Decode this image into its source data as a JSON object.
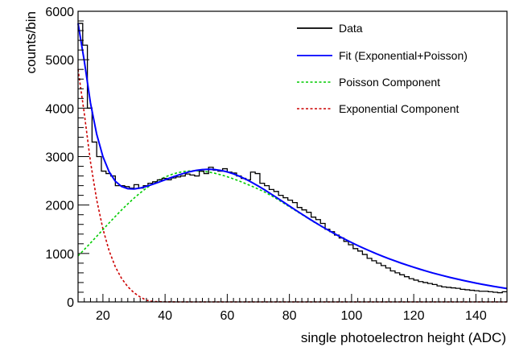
{
  "chart_data": {
    "type": "line",
    "xlabel": "single photoelectron height (ADC)",
    "ylabel": "counts/bin",
    "xlim": [
      12,
      150
    ],
    "ylim": [
      0,
      6000
    ],
    "x_ticks": [
      20,
      40,
      60,
      80,
      100,
      120,
      140
    ],
    "y_ticks": [
      0,
      1000,
      2000,
      3000,
      4000,
      5000,
      6000
    ],
    "x_tick_labels": [
      "20",
      "40",
      "60",
      "80",
      "100",
      "120",
      "140"
    ],
    "y_tick_labels": [
      "0",
      "1000",
      "2000",
      "3000",
      "4000",
      "5000",
      "6000"
    ],
    "grid": false,
    "legend_position": "top-right",
    "legend": [
      {
        "label": "Data",
        "color": "#000000",
        "style": "solid"
      },
      {
        "label": "Fit (Exponential+Poisson)",
        "color": "#0000ff",
        "style": "solid"
      },
      {
        "label": "Poisson Component",
        "color": "#00cc00",
        "style": "dashed"
      },
      {
        "label": "Exponential Component",
        "color": "#cc0000",
        "style": "dashed"
      }
    ],
    "series": [
      {
        "name": "Data",
        "type": "step",
        "bin_width": 1.5,
        "x": [
          12.75,
          14.25,
          15.75,
          17.25,
          18.75,
          20.25,
          21.75,
          23.25,
          24.75,
          26.25,
          27.75,
          29.25,
          30.75,
          32.25,
          33.75,
          35.25,
          36.75,
          38.25,
          39.75,
          41.25,
          42.75,
          44.25,
          45.75,
          47.25,
          48.75,
          50.25,
          51.75,
          53.25,
          54.75,
          56.25,
          57.75,
          59.25,
          60.75,
          62.25,
          63.75,
          65.25,
          66.75,
          68.25,
          69.75,
          71.25,
          72.75,
          74.25,
          75.75,
          77.25,
          78.75,
          80.25,
          81.75,
          83.25,
          84.75,
          86.25,
          87.75,
          89.25,
          90.75,
          92.25,
          93.75,
          95.25,
          96.75,
          98.25,
          99.75,
          101.25,
          102.75,
          104.25,
          105.75,
          107.25,
          108.75,
          110.25,
          111.75,
          113.25,
          114.75,
          116.25,
          117.75,
          119.25,
          120.75,
          122.25,
          123.75,
          125.25,
          126.75,
          128.25,
          129.75,
          131.25,
          132.75,
          134.25,
          135.75,
          137.25,
          138.75,
          140.25,
          141.75,
          143.25,
          144.75,
          146.25,
          147.75,
          149.25
        ],
        "y": [
          5750,
          5300,
          4000,
          3300,
          3000,
          2700,
          2650,
          2600,
          2400,
          2400,
          2380,
          2350,
          2420,
          2350,
          2400,
          2450,
          2480,
          2520,
          2550,
          2520,
          2560,
          2580,
          2600,
          2640,
          2620,
          2600,
          2700,
          2650,
          2780,
          2720,
          2700,
          2750,
          2680,
          2660,
          2600,
          2550,
          2520,
          2680,
          2650,
          2450,
          2400,
          2320,
          2280,
          2200,
          2150,
          2100,
          2050,
          1950,
          1900,
          1850,
          1750,
          1700,
          1620,
          1500,
          1450,
          1380,
          1320,
          1250,
          1180,
          1100,
          1050,
          980,
          900,
          850,
          800,
          750,
          700,
          640,
          600,
          560,
          520,
          480,
          450,
          420,
          400,
          380,
          360,
          330,
          310,
          300,
          290,
          280,
          260,
          250,
          240,
          230,
          220,
          220,
          210,
          200,
          190,
          210
        ]
      },
      {
        "name": "Fit (Exponential+Poisson)",
        "type": "line",
        "x": [
          12,
          14,
          16,
          18,
          20,
          22,
          24,
          26,
          28,
          30,
          32,
          34,
          36,
          38,
          40,
          42,
          44,
          46,
          48,
          50,
          52,
          54,
          56,
          58,
          60,
          62,
          64,
          66,
          68,
          70,
          72,
          74,
          76,
          78,
          80,
          82,
          84,
          86,
          88,
          90,
          92,
          94,
          96,
          98,
          100,
          102,
          104,
          106,
          108,
          110,
          112,
          114,
          116,
          118,
          120,
          122,
          124,
          126,
          128,
          130,
          132,
          134,
          136,
          138,
          140,
          142,
          144,
          146,
          148,
          150
        ],
        "y": [
          5750,
          4975,
          4105,
          3460,
          2999,
          2685,
          2490,
          2383,
          2337,
          2331,
          2351,
          2385,
          2427,
          2473,
          2521,
          2569,
          2613,
          2654,
          2689,
          2716,
          2732,
          2738,
          2732,
          2714,
          2684,
          2643,
          2592,
          2532,
          2464,
          2391,
          2314,
          2232,
          2149,
          2065,
          1980,
          1896,
          1813,
          1731,
          1651,
          1574,
          1499,
          1427,
          1357,
          1290,
          1226,
          1164,
          1105,
          1049,
          994,
          943,
          893,
          846,
          800,
          757,
          715,
          675,
          637,
          600,
          566,
          533,
          501,
          471,
          442,
          415,
          389,
          364,
          340,
          318,
          297,
          277
        ]
      },
      {
        "name": "Poisson Component",
        "type": "line",
        "x": [
          12,
          14,
          16,
          18,
          20,
          22,
          24,
          26,
          28,
          30,
          32,
          34,
          36,
          38,
          40,
          42,
          44,
          46,
          48,
          50,
          52,
          54,
          56,
          58,
          60,
          62,
          64,
          66,
          68,
          70,
          72,
          74,
          76,
          78,
          80,
          82,
          84,
          86,
          88,
          90,
          92,
          94,
          96,
          98,
          100,
          102,
          104,
          106,
          108,
          110,
          112,
          114,
          116,
          118,
          120,
          122,
          124,
          126,
          128,
          130,
          132,
          134,
          136,
          138,
          140,
          142,
          144,
          146,
          148,
          150
        ],
        "y": [
          950,
          1081,
          1216,
          1354,
          1493,
          1631,
          1766,
          1898,
          2023,
          2141,
          2251,
          2350,
          2439,
          2515,
          2578,
          2629,
          2667,
          2692,
          2705,
          2707,
          2699,
          2681,
          2656,
          2623,
          2584,
          2540,
          2492,
          2440,
          2386,
          2329,
          2270,
          2200,
          2125,
          2045,
          1965,
          1885,
          1805,
          1725,
          1645,
          1570,
          1495,
          1423,
          1354,
          1288,
          1224,
          1163,
          1105,
          1048,
          994,
          943,
          893,
          845,
          800,
          757,
          715,
          675,
          637,
          600,
          566,
          533,
          501,
          471,
          442,
          415,
          389,
          364,
          340,
          318,
          297,
          277
        ]
      },
      {
        "name": "Exponential Component",
        "type": "line",
        "x": [
          12,
          14,
          16,
          18,
          20,
          22,
          24,
          26,
          28,
          30,
          32,
          34,
          36,
          38,
          40,
          42,
          44,
          46,
          48,
          50,
          52,
          54,
          56,
          58,
          60,
          62,
          64,
          66,
          68,
          70,
          72,
          74,
          76,
          78,
          80,
          82,
          84,
          86,
          88,
          90,
          92,
          94,
          96,
          98,
          100,
          102,
          104,
          106,
          108,
          110,
          112,
          114,
          116,
          118,
          120,
          122,
          124,
          126,
          128,
          130,
          132,
          134,
          136,
          138,
          140,
          142,
          144,
          146,
          148,
          150
        ],
        "y": [
          4800,
          3894,
          2889,
          2106,
          1506,
          1054,
          724,
          485,
          314,
          190,
          100,
          35,
          10,
          5,
          2,
          1,
          0,
          0,
          0,
          0,
          0,
          0,
          0,
          0,
          0,
          0,
          0,
          0,
          0,
          0,
          0,
          0,
          0,
          0,
          0,
          0,
          0,
          0,
          0,
          0,
          0,
          0,
          0,
          0,
          0,
          0,
          0,
          0,
          0,
          0,
          0,
          0,
          0,
          0,
          0,
          0,
          0,
          0,
          0,
          0,
          0,
          0,
          0,
          0,
          0,
          0,
          0,
          0,
          0,
          0
        ]
      }
    ]
  }
}
